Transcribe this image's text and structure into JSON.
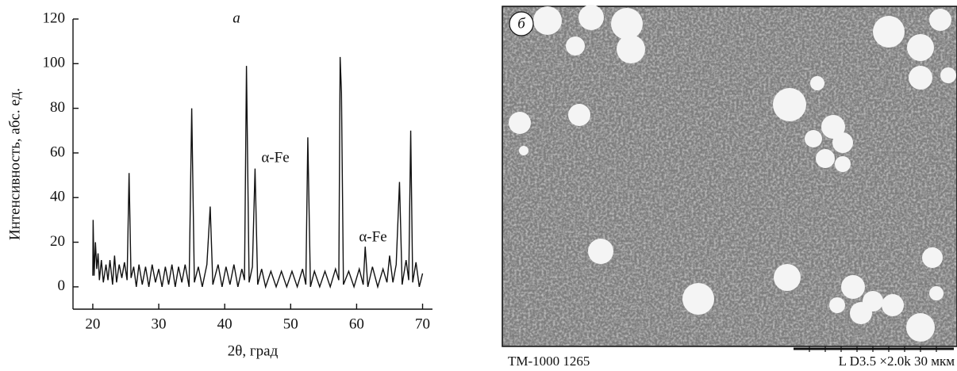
{
  "chart_data": {
    "type": "line",
    "title": "а",
    "xlabel": "2θ, град",
    "ylabel": "Интенсивность, абс. ед.",
    "annotations": [
      "α-Fe",
      "α-Fe"
    ],
    "xlim": [
      17,
      71.5
    ],
    "ylim": [
      -10,
      120
    ],
    "xticks": [
      20,
      30,
      40,
      50,
      60,
      70
    ],
    "yticks": [
      0,
      20,
      40,
      60,
      80,
      100,
      120
    ],
    "grid": false,
    "series": [
      {
        "color": "#111111",
        "x": [
          20,
          20.05,
          20.2,
          20.4,
          20.6,
          20.8,
          21,
          21.3,
          21.6,
          22,
          22.3,
          22.6,
          23,
          23.3,
          23.6,
          24,
          24.4,
          24.8,
          25.2,
          25.5,
          25.8,
          26.2,
          26.6,
          27,
          27.5,
          28,
          28.5,
          29,
          29.5,
          30,
          30.5,
          31,
          31.5,
          32,
          32.5,
          33,
          33.5,
          34,
          34.6,
          35,
          35.4,
          36,
          36.6,
          37.3,
          37.8,
          38.2,
          39,
          39.6,
          40.2,
          40.8,
          41.4,
          42,
          42.6,
          43,
          43.3,
          43.7,
          44.2,
          44.6,
          45,
          45.6,
          46.2,
          47,
          47.8,
          48.6,
          49.4,
          50.2,
          51,
          51.8,
          52.3,
          52.6,
          53,
          53.6,
          54.4,
          55.2,
          56,
          56.8,
          57.3,
          57.5,
          57.7,
          58,
          58.8,
          59.6,
          60.4,
          61,
          61.3,
          61.7,
          62.4,
          63.2,
          64,
          64.6,
          65,
          65.5,
          66,
          66.5,
          66.9,
          67.5,
          67.9,
          68.2,
          68.5,
          69,
          69.5,
          70
        ],
        "values": [
          5,
          30,
          5,
          20,
          8,
          15,
          3,
          12,
          2,
          10,
          3,
          12,
          1,
          14,
          2,
          10,
          4,
          11,
          3,
          51,
          4,
          9,
          0,
          10,
          1,
          9,
          0,
          10,
          2,
          8,
          0,
          9,
          1,
          10,
          0,
          9,
          2,
          10,
          0,
          80,
          2,
          9,
          0,
          10,
          36,
          1,
          10,
          0,
          9,
          1,
          10,
          0,
          8,
          3,
          99,
          2,
          9,
          53,
          1,
          8,
          0,
          7,
          0,
          7,
          0,
          7,
          0,
          8,
          1,
          67,
          0,
          7,
          0,
          7,
          0,
          8,
          3,
          103,
          87,
          1,
          7,
          0,
          8,
          1,
          18,
          0,
          9,
          0,
          8,
          2,
          14,
          2,
          10,
          47,
          1,
          12,
          3,
          70,
          2,
          11,
          0,
          6
        ]
      }
    ]
  },
  "image_panel": {
    "label": "б",
    "instrument": "TM-1000  1265",
    "settings": "L D3.5 ×2.0k  30 мкм"
  }
}
